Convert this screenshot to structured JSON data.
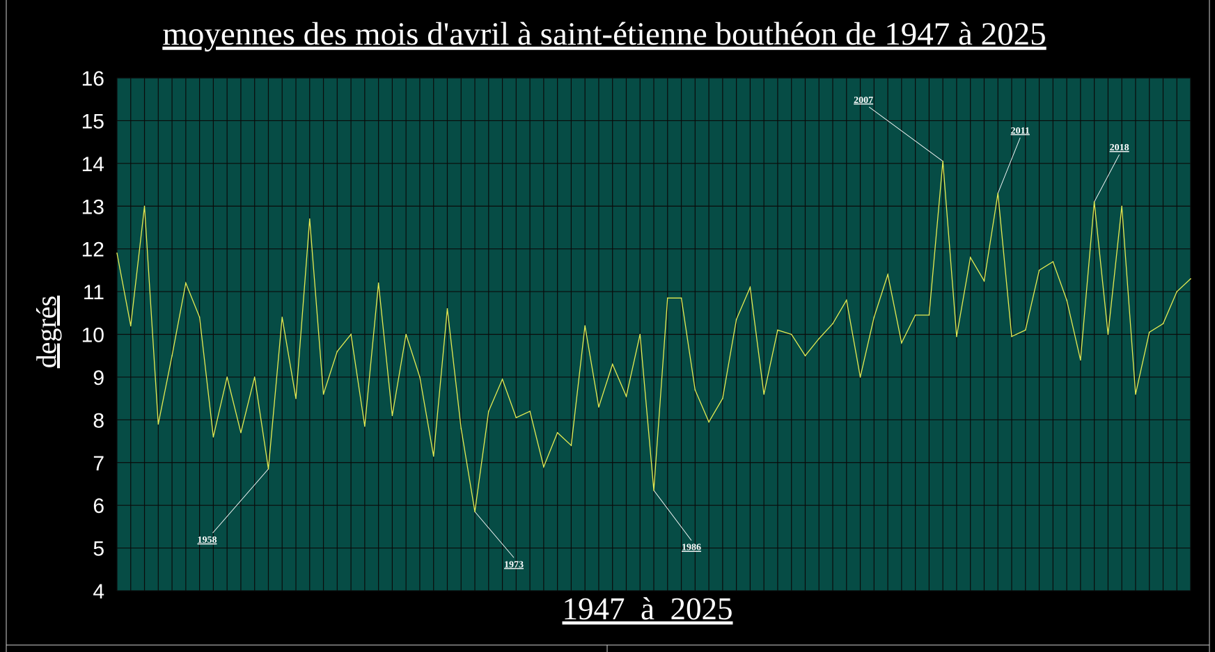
{
  "colors": {
    "background": "#000000",
    "plot_background": "#064c45",
    "grid": "#0a0a0a",
    "line": "#e6ec52",
    "text": "#ffffff"
  },
  "chart_data": {
    "type": "line",
    "title": "moyennes des mois d'avril à saint-étienne bouthéon de 1947 à 2025",
    "xlabel": "1947  à  2025",
    "ylabel": "degrés",
    "ylim": [
      4,
      16
    ],
    "yticks": [
      4,
      5,
      6,
      7,
      8,
      9,
      10,
      11,
      12,
      13,
      14,
      15,
      16
    ],
    "xlim": [
      1947,
      2025
    ],
    "grid": true,
    "legend": "none",
    "series": [
      {
        "x": [
          1947,
          1948,
          1949,
          1950,
          1951,
          1952,
          1953,
          1954,
          1955,
          1956,
          1957,
          1958,
          1959,
          1960,
          1961,
          1962,
          1963,
          1964,
          1965,
          1966,
          1967,
          1968,
          1969,
          1970,
          1971,
          1972,
          1973,
          1974,
          1975,
          1976,
          1977,
          1978,
          1979,
          1980,
          1981,
          1982,
          1983,
          1984,
          1985,
          1986,
          1987,
          1988,
          1989,
          1990,
          1991,
          1992,
          1993,
          1994,
          1995,
          1996,
          1997,
          1998,
          1999,
          2000,
          2001,
          2002,
          2003,
          2004,
          2005,
          2006,
          2007,
          2008,
          2009,
          2010,
          2011,
          2012,
          2013,
          2014,
          2015,
          2016,
          2017,
          2018,
          2019,
          2020,
          2021,
          2022,
          2023,
          2024,
          2025
        ],
        "values": [
          11.9,
          10.2,
          13.0,
          7.9,
          9.5,
          11.2,
          10.4,
          7.6,
          9.0,
          7.7,
          9.0,
          6.85,
          10.4,
          8.5,
          12.7,
          8.6,
          9.6,
          10.0,
          7.85,
          11.2,
          8.1,
          10.0,
          9.0,
          7.15,
          10.6,
          7.8,
          5.85,
          8.2,
          8.95,
          8.05,
          8.2,
          6.9,
          7.7,
          7.4,
          10.2,
          8.3,
          9.3,
          8.55,
          10.0,
          6.35,
          10.85,
          10.85,
          8.7,
          7.95,
          8.5,
          10.35,
          11.1,
          8.6,
          10.1,
          10.0,
          9.5,
          9.9,
          10.25,
          10.8,
          9.0,
          10.4,
          11.4,
          9.8,
          10.45,
          10.45,
          14.05,
          9.95,
          11.8,
          11.25,
          13.3,
          9.95,
          10.1,
          11.5,
          11.7,
          10.8,
          9.4,
          13.1,
          10.0,
          13.0,
          8.6,
          10.05,
          10.25,
          11.0,
          11.3
        ]
      }
    ],
    "annotations": [
      {
        "label": "1958",
        "x": 1958,
        "y": 6.85
      },
      {
        "label": "1973",
        "x": 1973,
        "y": 5.85
      },
      {
        "label": "1986",
        "x": 1986,
        "y": 6.35
      },
      {
        "label": "2007",
        "x": 2007,
        "y": 14.05
      },
      {
        "label": "2011",
        "x": 2011,
        "y": 13.3
      },
      {
        "label": "2018",
        "x": 2018,
        "y": 13.1
      }
    ]
  }
}
